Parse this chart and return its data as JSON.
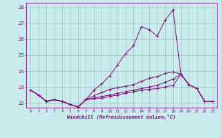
{
  "bg_color": "#c8ecec",
  "grid_color": "#9dbfbf",
  "line_color": "#800080",
  "xlabel": "Windchill (Refroidissement éolien,°C)",
  "xlim": [
    -0.5,
    23.5
  ],
  "ylim": [
    21.7,
    28.3
  ],
  "yticks": [
    22,
    23,
    24,
    25,
    26,
    27,
    28
  ],
  "xticks": [
    0,
    1,
    2,
    3,
    4,
    5,
    6,
    7,
    8,
    9,
    10,
    11,
    12,
    13,
    14,
    15,
    16,
    17,
    18,
    19,
    20,
    21,
    22,
    23
  ],
  "series": [
    [
      22.8,
      22.5,
      22.1,
      22.2,
      22.1,
      21.9,
      21.75,
      22.2,
      22.8,
      23.2,
      23.7,
      24.4,
      25.1,
      25.6,
      26.8,
      26.6,
      26.2,
      27.2,
      27.85,
      23.8,
      23.15,
      22.9,
      22.1,
      22.1
    ],
    [
      22.8,
      22.5,
      22.1,
      22.2,
      22.1,
      21.9,
      21.75,
      22.2,
      22.45,
      22.65,
      22.85,
      22.95,
      23.05,
      23.15,
      23.35,
      23.55,
      23.65,
      23.85,
      23.95,
      23.8,
      23.15,
      22.9,
      22.1,
      22.1
    ],
    [
      22.8,
      22.5,
      22.1,
      22.2,
      22.1,
      21.9,
      21.75,
      22.2,
      22.3,
      22.4,
      22.5,
      22.6,
      22.7,
      22.8,
      22.9,
      23.0,
      23.1,
      23.3,
      23.5,
      23.8,
      23.15,
      22.9,
      22.1,
      22.1
    ],
    [
      22.8,
      22.5,
      22.1,
      22.2,
      22.1,
      21.9,
      21.75,
      22.2,
      22.25,
      22.3,
      22.4,
      22.5,
      22.6,
      22.7,
      22.8,
      22.85,
      22.9,
      23.0,
      23.1,
      23.8,
      23.15,
      22.9,
      22.1,
      22.1
    ]
  ]
}
